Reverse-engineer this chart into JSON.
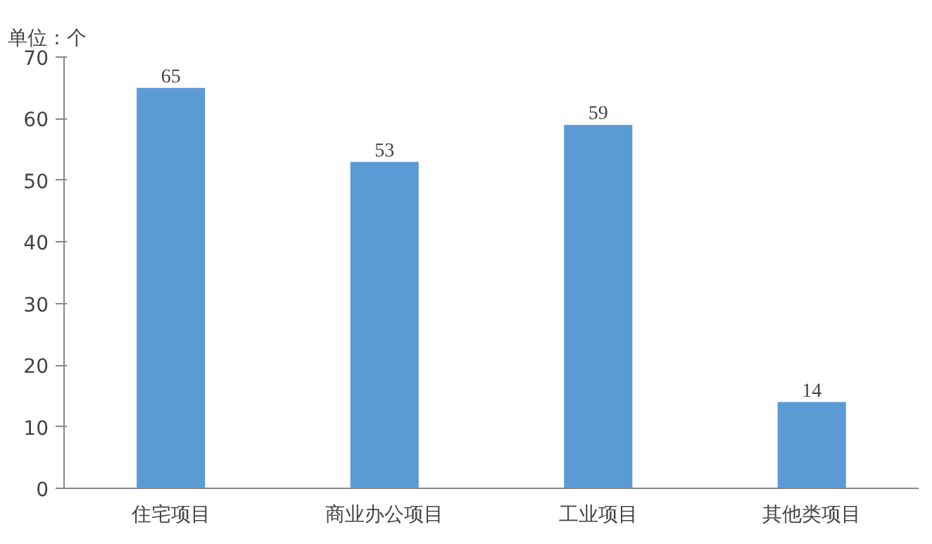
{
  "chart_data": {
    "type": "bar",
    "title": "单位：个",
    "categories": [
      "住宅项目",
      "商业办公项目",
      "工业项目",
      "其他类项目"
    ],
    "values": [
      65,
      53,
      59,
      14
    ],
    "color": "#5b9bd5",
    "ylim": [
      0,
      70
    ],
    "yticks": [
      0,
      10,
      20,
      30,
      40,
      50,
      60,
      70
    ],
    "grid": false,
    "data_labels": true
  }
}
